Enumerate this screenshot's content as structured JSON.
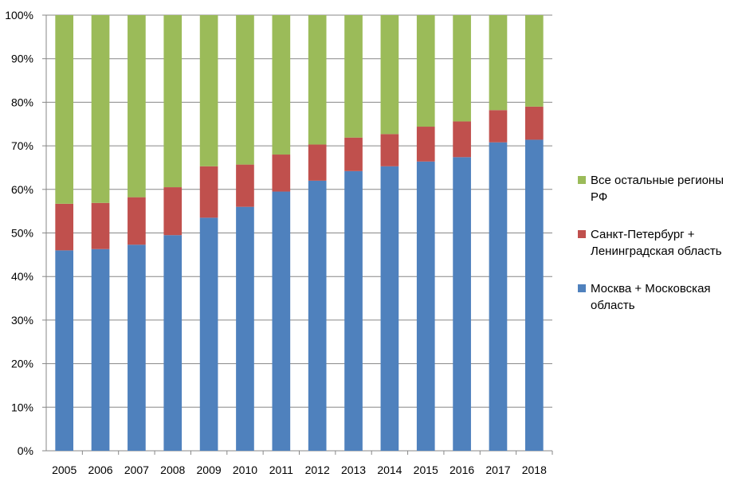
{
  "chart_data": {
    "type": "bar",
    "stacked": true,
    "percent": true,
    "title": "",
    "xlabel": "",
    "ylabel": "",
    "ylim": [
      0,
      100
    ],
    "y_ticks": [
      "0%",
      "10%",
      "20%",
      "30%",
      "40%",
      "50%",
      "60%",
      "70%",
      "80%",
      "90%",
      "100%"
    ],
    "categories": [
      "2005",
      "2006",
      "2007",
      "2008",
      "2009",
      "2010",
      "2011",
      "2012",
      "2013",
      "2014",
      "2015",
      "2016",
      "2017",
      "2018"
    ],
    "series": [
      {
        "name": "Москва + Московская область",
        "color": "#4f81bd",
        "values": [
          46,
          46.3,
          47.3,
          49.5,
          53.5,
          56,
          59.5,
          62,
          64.2,
          65.3,
          66.4,
          67.4,
          70.8,
          71.4
        ]
      },
      {
        "name": "Санкт-Петербург + Ленинградская область",
        "color": "#c0504d",
        "values": [
          10.7,
          10.6,
          10.9,
          11,
          11.8,
          9.7,
          8.5,
          8.3,
          7.7,
          7.4,
          8,
          8.2,
          7.4,
          7.6
        ]
      },
      {
        "name": "Все остальные регионы РФ",
        "color": "#9bbb59",
        "values": [
          43.3,
          43.1,
          41.8,
          39.5,
          34.7,
          34.3,
          32,
          29.7,
          28.1,
          27.3,
          25.6,
          24.4,
          21.8,
          21
        ]
      }
    ],
    "legend": {
      "position": "right",
      "order": [
        2,
        1,
        0
      ],
      "lines": [
        [
          "Все остальные регионы",
          "РФ"
        ],
        [
          "Санкт-Петербург +",
          "Ленинградская область"
        ],
        [
          "Москва + Московская",
          "область"
        ]
      ]
    },
    "grid": true
  }
}
